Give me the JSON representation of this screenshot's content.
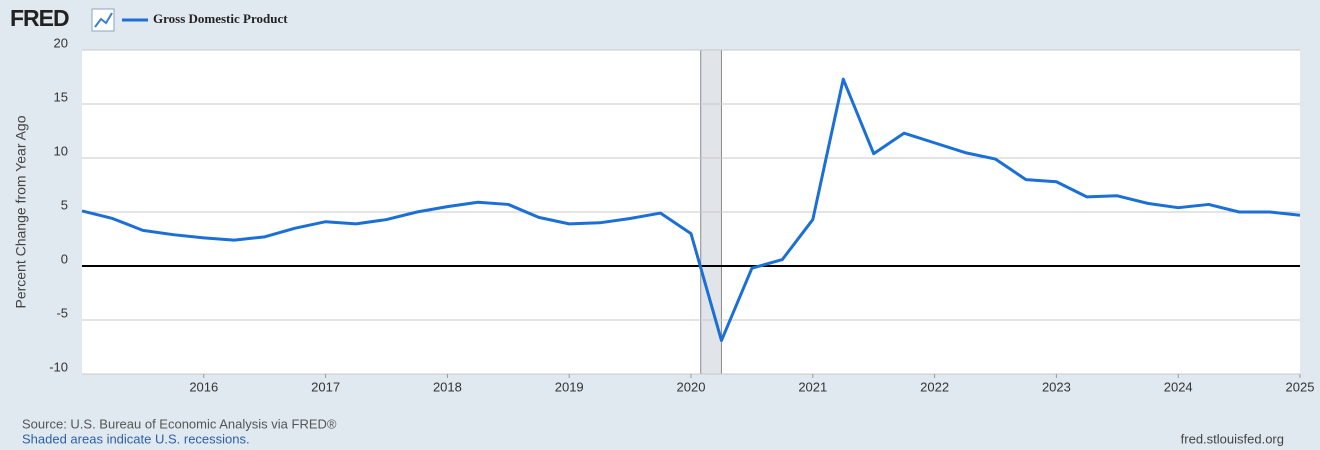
{
  "chart_data": {
    "type": "line",
    "logo": "FRED",
    "y_label": "Percent Change from Year Ago",
    "source": "Source: U.S. Bureau of Economic Analysis via FRED®",
    "note": "Shaded areas indicate U.S. recessions.",
    "site": "fred.stlouisfed.org",
    "x": [
      2015,
      2015.25,
      2015.5,
      2015.75,
      2016,
      2016.25,
      2016.5,
      2016.75,
      2017,
      2017.25,
      2017.5,
      2017.75,
      2018,
      2018.25,
      2018.5,
      2018.75,
      2019,
      2019.25,
      2019.5,
      2019.75,
      2020,
      2020.25,
      2020.5,
      2020.75,
      2021,
      2021.25,
      2021.5,
      2021.75,
      2022,
      2022.25,
      2022.5,
      2022.75,
      2023,
      2023.25,
      2023.5,
      2023.75,
      2024,
      2024.25,
      2024.5,
      2024.75,
      2025
    ],
    "series": [
      {
        "name": "Gross Domestic Product",
        "color": "#1b6fd6",
        "values": [
          5.1,
          4.4,
          3.3,
          2.9,
          2.6,
          2.4,
          2.7,
          3.5,
          4.1,
          3.9,
          4.3,
          5.0,
          5.5,
          5.9,
          5.7,
          4.5,
          3.9,
          4.0,
          4.4,
          4.9,
          3.0,
          -6.9,
          -0.2,
          0.6,
          4.3,
          17.3,
          10.4,
          12.3,
          11.4,
          10.5,
          9.9,
          8.0,
          7.8,
          6.4,
          6.5,
          5.8,
          5.4,
          5.7,
          5.0,
          5.0,
          4.7
        ]
      }
    ],
    "recessions": [
      [
        2020.08,
        2020.25
      ]
    ],
    "xlim": [
      2015,
      2025
    ],
    "xticks": [
      2016,
      2017,
      2018,
      2019,
      2020,
      2021,
      2022,
      2023,
      2024,
      2025
    ],
    "ylim": [
      -10,
      20
    ],
    "yticks": [
      -10,
      -5,
      0,
      5,
      10,
      15,
      20
    ],
    "grid": true,
    "zero_line": true
  }
}
